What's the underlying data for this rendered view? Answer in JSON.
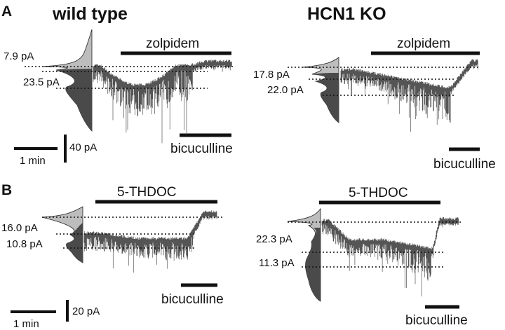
{
  "panels": {
    "a": {
      "letter": "A",
      "left": {
        "title": "wild type",
        "drug": "zolpidem",
        "blocker": "bicuculline",
        "amp_upper": "7.9 pA",
        "amp_lower": "23.5 pA"
      },
      "right": {
        "title": "HCN1 KO",
        "drug": "zolpidem",
        "blocker": "bicuculline",
        "amp_upper": "17.8 pA",
        "amp_lower": "22.0 pA"
      },
      "scale_time": "1 min",
      "scale_current": "40 pA"
    },
    "b": {
      "letter": "B",
      "left": {
        "drug": "5-THDOC",
        "blocker": "bicuculline",
        "amp_upper": "16.0 pA",
        "amp_lower": "10.8 pA"
      },
      "right": {
        "drug": "5-THDOC",
        "blocker": "bicuculline",
        "amp_upper": "22.3 pA",
        "amp_lower": "11.3 pA"
      },
      "scale_time": "1 min",
      "scale_current": "20 pA"
    }
  },
  "colors": {
    "trace": "#555555",
    "histogram_dark": "#4a4a4a",
    "histogram_light": "#bdbdbd",
    "lines": "#111111"
  }
}
